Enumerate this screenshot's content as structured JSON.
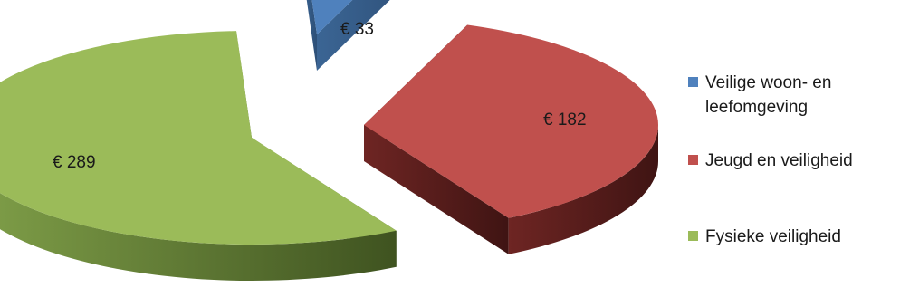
{
  "chart_data": {
    "type": "pie",
    "style": "3d-exploded",
    "categories": [
      "Veilige woon- en leefomgeving",
      "Jeugd en veiligheid",
      "Fysieke veiligheid"
    ],
    "values": [
      33,
      182,
      289
    ],
    "data_labels": [
      "€ 33",
      "€ 182",
      "€ 289"
    ],
    "colors": [
      "#4f81bd",
      "#c0504d",
      "#9bbb59"
    ],
    "title": "",
    "legend_position": "right"
  }
}
